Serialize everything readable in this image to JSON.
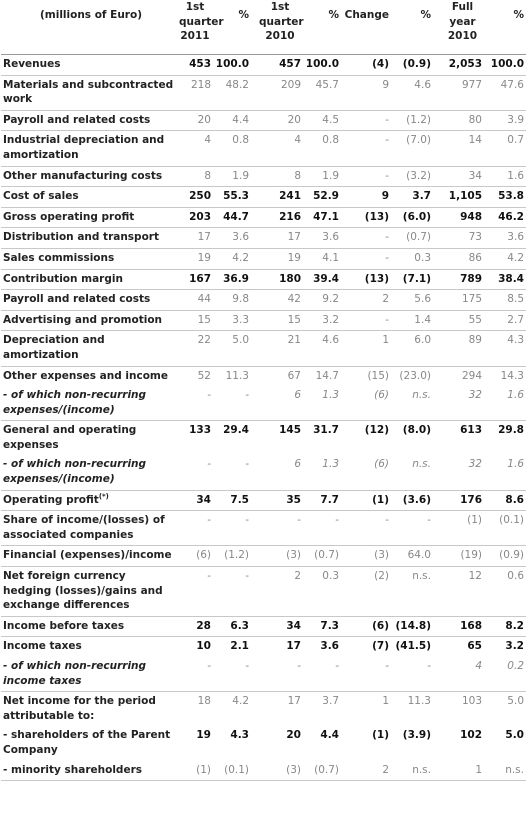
{
  "headers": {
    "label": "(millions of Euro)",
    "q1_2011": "1st quarter 2011",
    "pct1": "%",
    "q1_2010": "1st quarter 2010",
    "pct2": "%",
    "change": "Change",
    "pct3": "%",
    "fy2010": "Full year 2010",
    "pct4": "%"
  },
  "rows": [
    {
      "label": "Revenues",
      "v": [
        "453",
        "100.0",
        "457",
        "100.0",
        "(4)",
        "(0.9)",
        "2,053",
        "100.0"
      ],
      "style": "hl"
    },
    {
      "label": "Materials and subcontracted work",
      "v": [
        "218",
        "48.2",
        "209",
        "45.7",
        "9",
        "4.6",
        "977",
        "47.6"
      ],
      "style": ""
    },
    {
      "label": "Payroll and related costs",
      "v": [
        "20",
        "4.4",
        "20",
        "4.5",
        "-",
        "(1.2)",
        "80",
        "3.9"
      ],
      "style": ""
    },
    {
      "label": "Industrial depreciation and amortization",
      "v": [
        "4",
        "0.8",
        "4",
        "0.8",
        "-",
        "(7.0)",
        "14",
        "0.7"
      ],
      "style": ""
    },
    {
      "label": "Other manufacturing costs",
      "v": [
        "8",
        "1.9",
        "8",
        "1.9",
        "-",
        "(3.2)",
        "34",
        "1.6"
      ],
      "style": ""
    },
    {
      "label": "Cost of sales",
      "v": [
        "250",
        "55.3",
        "241",
        "52.9",
        "9",
        "3.7",
        "1,105",
        "53.8"
      ],
      "style": "hl"
    },
    {
      "label": "Gross operating profit",
      "v": [
        "203",
        "44.7",
        "216",
        "47.1",
        "(13)",
        "(6.0)",
        "948",
        "46.2"
      ],
      "style": "hl"
    },
    {
      "label": "Distribution and transport",
      "v": [
        "17",
        "3.6",
        "17",
        "3.6",
        "-",
        "(0.7)",
        "73",
        "3.6"
      ],
      "style": ""
    },
    {
      "label": "Sales commissions",
      "v": [
        "19",
        "4.2",
        "19",
        "4.1",
        "-",
        "0.3",
        "86",
        "4.2"
      ],
      "style": ""
    },
    {
      "label": "Contribution margin",
      "v": [
        "167",
        "36.9",
        "180",
        "39.4",
        "(13)",
        "(7.1)",
        "789",
        "38.4"
      ],
      "style": "hl"
    },
    {
      "label": "Payroll and related costs",
      "v": [
        "44",
        "9.8",
        "42",
        "9.2",
        "2",
        "5.6",
        "175",
        "8.5"
      ],
      "style": ""
    },
    {
      "label": "Advertising and promotion",
      "v": [
        "15",
        "3.3",
        "15",
        "3.2",
        "-",
        "1.4",
        "55",
        "2.7"
      ],
      "style": ""
    },
    {
      "label": "Depreciation and amortization",
      "v": [
        "22",
        "5.0",
        "21",
        "4.6",
        "1",
        "6.0",
        "89",
        "4.3"
      ],
      "style": ""
    },
    {
      "label": "Other expenses and income",
      "v": [
        "52",
        "11.3",
        "67",
        "14.7",
        "(15)",
        "(23.0)",
        "294",
        "14.3"
      ],
      "style": "nb"
    },
    {
      "label": "- of which non-recurring expenses/(income)",
      "v": [
        "-",
        "-",
        "6",
        "1.3",
        "(6)",
        "n.s.",
        "32",
        "1.6"
      ],
      "style": "sub"
    },
    {
      "label": "General and operating expenses",
      "v": [
        "133",
        "29.4",
        "145",
        "31.7",
        "(12)",
        "(8.0)",
        "613",
        "29.8"
      ],
      "style": "hl nb"
    },
    {
      "label": "- of which non-recurring expenses/(income)",
      "v": [
        "-",
        "-",
        "6",
        "1.3",
        "(6)",
        "n.s.",
        "32",
        "1.6"
      ],
      "style": "sub"
    },
    {
      "label": "Operating profit",
      "sup": "(*)",
      "v": [
        "34",
        "7.5",
        "35",
        "7.7",
        "(1)",
        "(3.6)",
        "176",
        "8.6"
      ],
      "style": "hl"
    },
    {
      "label": "Share of income/(losses) of associated companies",
      "v": [
        "-",
        "-",
        "-",
        "-",
        "-",
        "-",
        "(1)",
        "(0.1)"
      ],
      "style": ""
    },
    {
      "label": "Financial (expenses)/income",
      "v": [
        "(6)",
        "(1.2)",
        "(3)",
        "(0.7)",
        "(3)",
        "64.0",
        "(19)",
        "(0.9)"
      ],
      "style": ""
    },
    {
      "label": "Net foreign currency hedging (losses)/gains and exchange differences",
      "v": [
        "-",
        "-",
        "2",
        "0.3",
        "(2)",
        "n.s.",
        "12",
        "0.6"
      ],
      "style": ""
    },
    {
      "label": "Income before taxes",
      "v": [
        "28",
        "6.3",
        "34",
        "7.3",
        "(6)",
        "(14.8)",
        "168",
        "8.2"
      ],
      "style": "hl"
    },
    {
      "label": "Income taxes",
      "v": [
        "10",
        "2.1",
        "17",
        "3.6",
        "(7)",
        "(41.5)",
        "65",
        "3.2"
      ],
      "style": "hl nb"
    },
    {
      "label": "- of which non-recurring income taxes",
      "v": [
        "-",
        "-",
        "-",
        "-",
        "-",
        "-",
        "4",
        "0.2"
      ],
      "style": "sub"
    },
    {
      "label": "Net income for the period attributable to:",
      "v": [
        "18",
        "4.2",
        "17",
        "3.7",
        "1",
        "11.3",
        "103",
        "5.0"
      ],
      "style": "nb"
    },
    {
      "label": "- shareholders of the Parent Company",
      "v": [
        "19",
        "4.3",
        "20",
        "4.4",
        "(1)",
        "(3.9)",
        "102",
        "5.0"
      ],
      "style": "hl nb"
    },
    {
      "label": "- minority shareholders",
      "v": [
        "(1)",
        "(0.1)",
        "(3)",
        "(0.7)",
        "2",
        "n.s.",
        "1",
        "n.s."
      ],
      "style": ""
    }
  ]
}
